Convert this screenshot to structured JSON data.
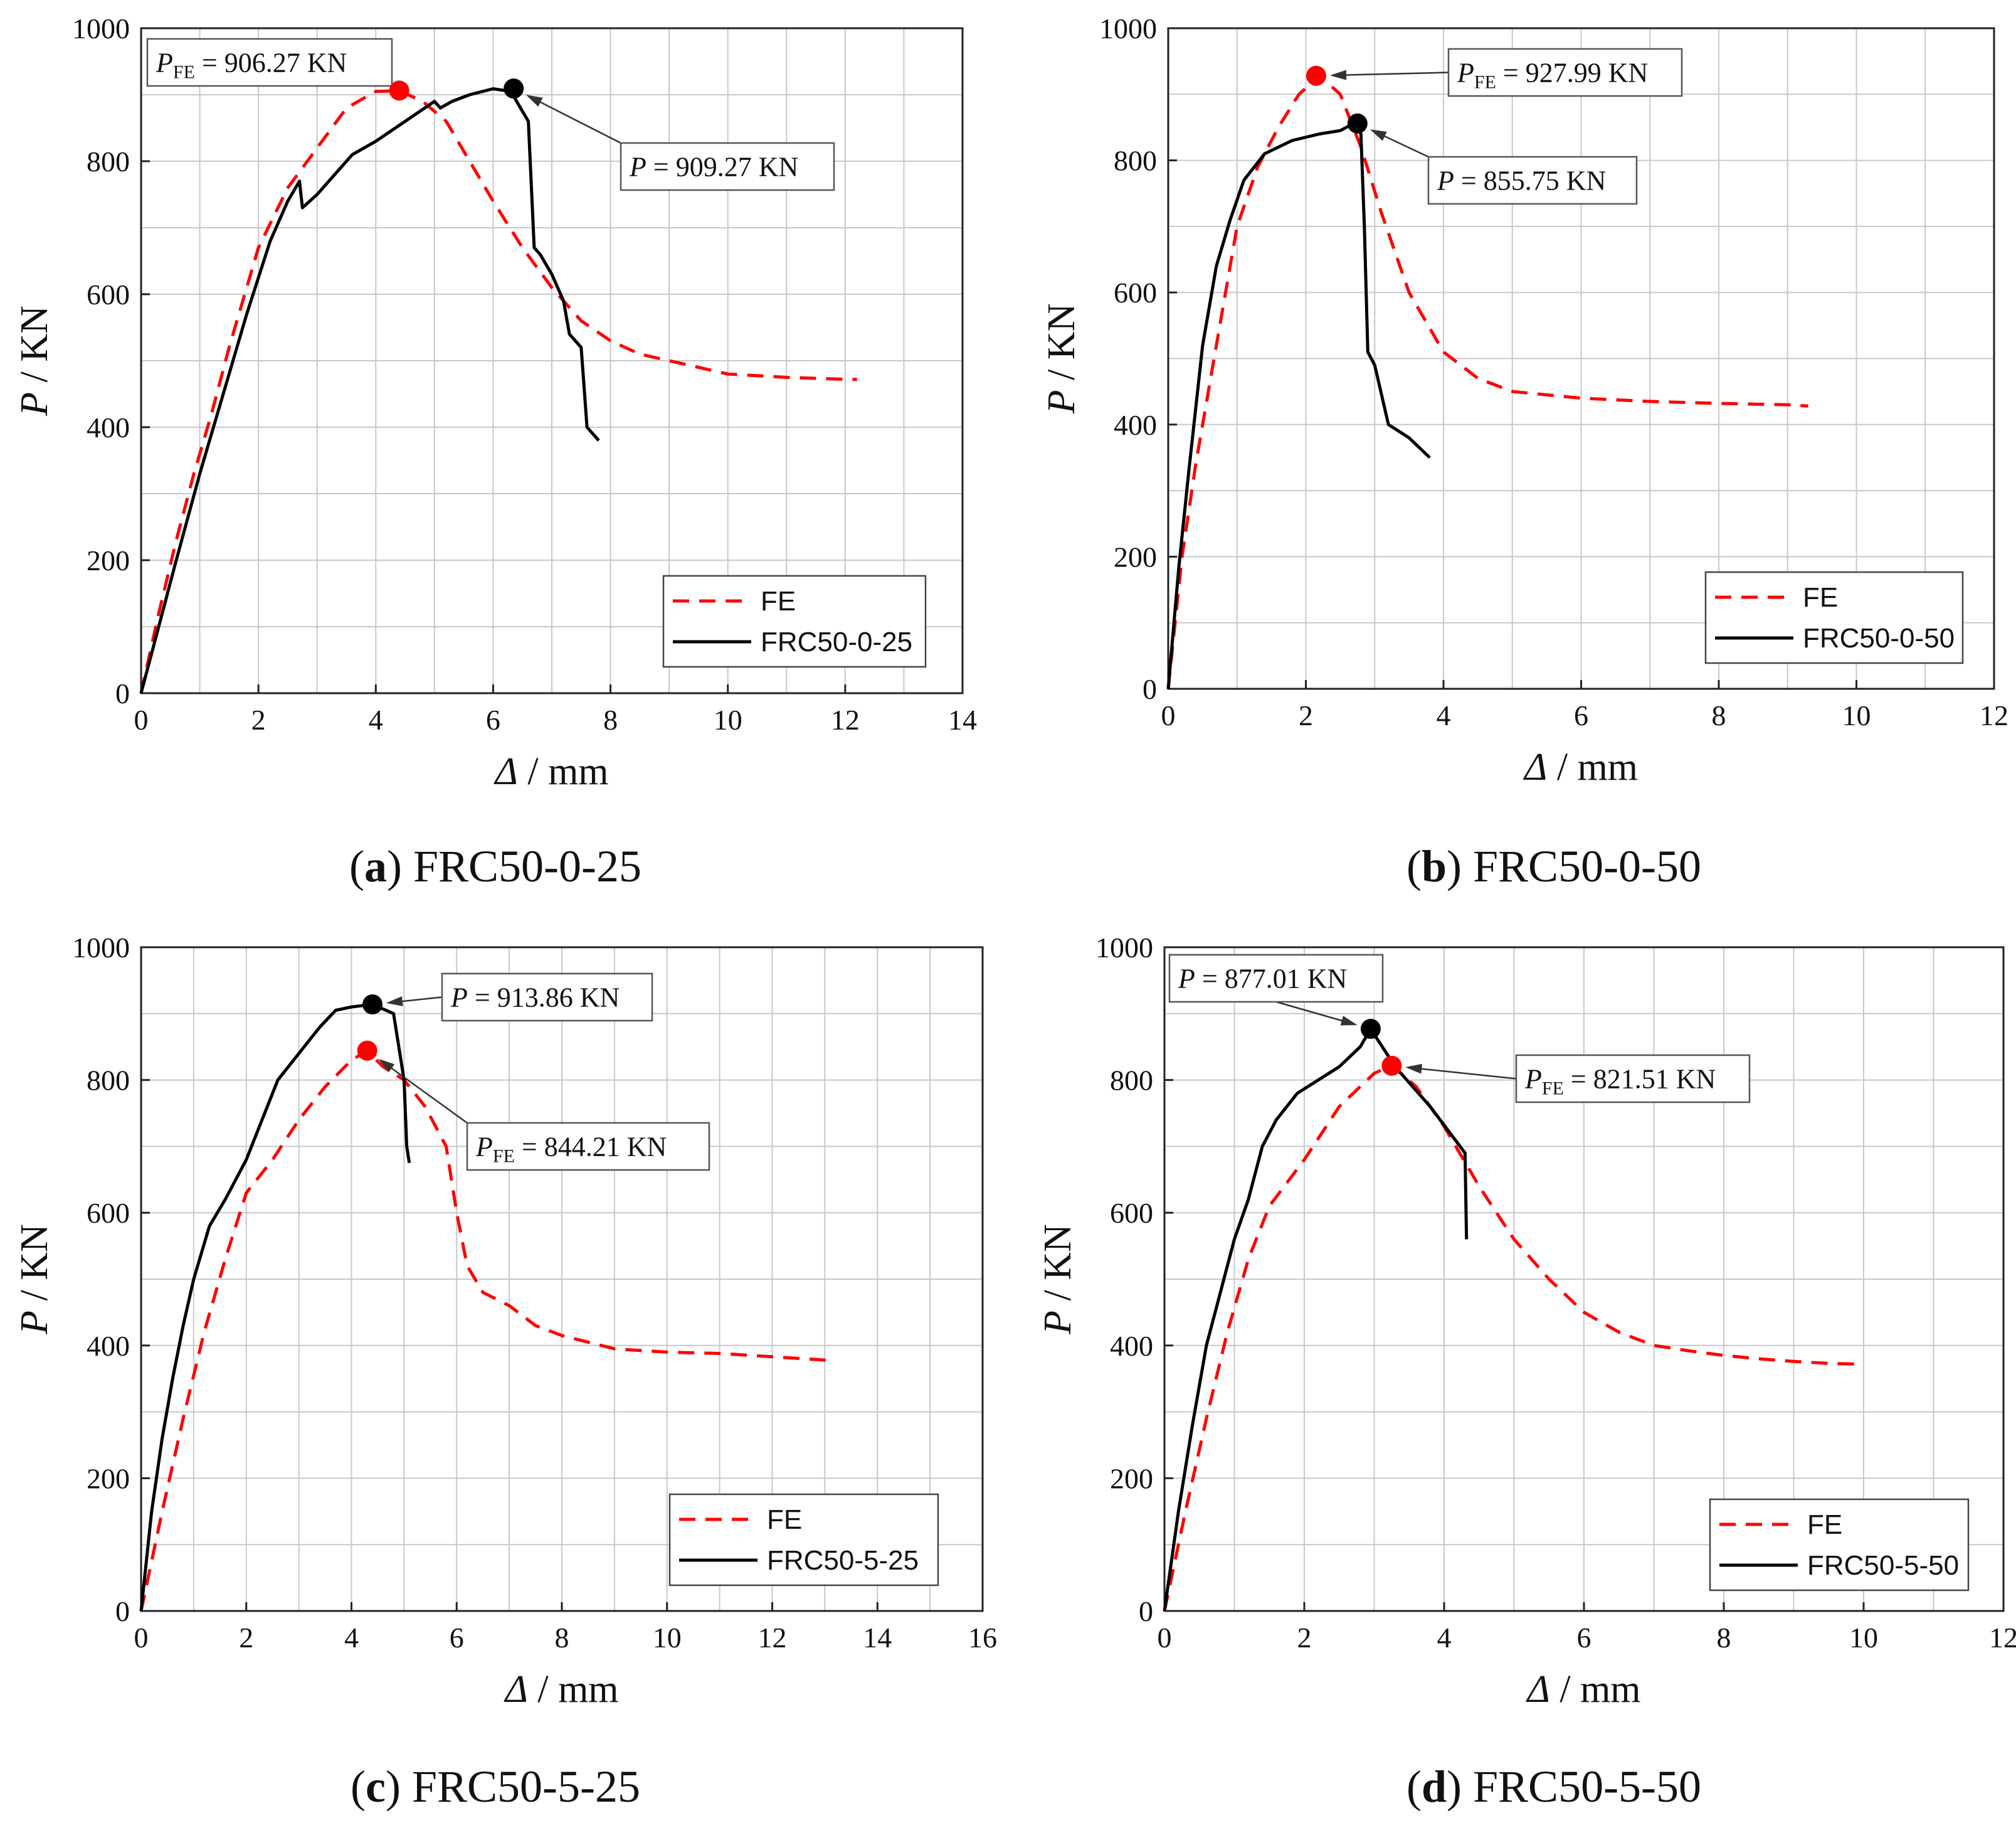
{
  "chart_data": [
    {
      "type": "line",
      "caption_letter": "a",
      "caption_text": "FRC50-0-25",
      "xlabel_symbol": "Δ",
      "xlabel_unit": "/ mm",
      "ylabel_symbol": "P",
      "ylabel_unit": "/ KN",
      "xlim": [
        0,
        14
      ],
      "ylim": [
        0,
        1000
      ],
      "xticks": [
        "0",
        "2",
        "4",
        "6",
        "8",
        "10",
        "12",
        "14"
      ],
      "yticks": [
        "0",
        "200",
        "400",
        "600",
        "800",
        "1000"
      ],
      "legend_position": "bottom-right",
      "series": [
        {
          "name": "FE",
          "style": "dashed",
          "color": "#ff0000",
          "x": [
            0,
            0.3,
            0.6,
            0.9,
            1.2,
            1.5,
            2.0,
            2.5,
            3.0,
            3.5,
            4.0,
            4.4,
            4.8,
            5.2,
            5.6,
            6.0,
            6.5,
            7.0,
            7.5,
            8.0,
            8.5,
            9.0,
            10.0,
            11.0,
            12.0,
            12.2
          ],
          "y": [
            0,
            120,
            230,
            330,
            420,
            520,
            670,
            760,
            820,
            880,
            905,
            906,
            890,
            860,
            800,
            740,
            670,
            610,
            560,
            530,
            510,
            500,
            480,
            475,
            472,
            472
          ]
        },
        {
          "name": "FRC50-0-25",
          "style": "solid",
          "color": "#000000",
          "x": [
            0,
            0.3,
            0.6,
            1.0,
            1.4,
            1.8,
            2.2,
            2.5,
            2.7,
            2.75,
            3.0,
            3.3,
            3.6,
            4.0,
            4.5,
            5.0,
            5.1,
            5.3,
            5.6,
            6.0,
            6.3,
            6.6,
            6.7,
            6.8,
            7.0,
            7.2,
            7.3,
            7.5,
            7.55,
            7.6,
            7.8
          ],
          "y": [
            0,
            100,
            200,
            330,
            450,
            570,
            680,
            740,
            770,
            730,
            750,
            780,
            810,
            830,
            860,
            890,
            880,
            890,
            900,
            909,
            905,
            860,
            670,
            660,
            630,
            590,
            540,
            520,
            460,
            400,
            380
          ]
        }
      ],
      "markers": [
        {
          "series": "FE",
          "x": 4.4,
          "y": 906.27,
          "color": "#ff0000"
        },
        {
          "series": "FRC50-0-25",
          "x": 6.35,
          "y": 909.27,
          "color": "#000000"
        }
      ],
      "annotations": [
        {
          "symbol": "P",
          "subscript": "FE",
          "text": " = 906.27 KN",
          "point_x": 4.4,
          "point_y": 906.27
        },
        {
          "symbol": "P",
          "subscript": "",
          "text": " = 909.27 KN",
          "point_x": 6.35,
          "point_y": 909.27
        }
      ]
    },
    {
      "type": "line",
      "caption_letter": "b",
      "caption_text": "FRC50-0-50",
      "xlabel_symbol": "Δ",
      "xlabel_unit": "/ mm",
      "ylabel_symbol": "P",
      "ylabel_unit": "/ KN",
      "xlim": [
        0,
        12
      ],
      "ylim": [
        0,
        1000
      ],
      "xticks": [
        "0",
        "2",
        "4",
        "6",
        "8",
        "10",
        "12"
      ],
      "yticks": [
        "0",
        "200",
        "400",
        "600",
        "800",
        "1000"
      ],
      "legend_position": "bottom-right",
      "series": [
        {
          "name": "FE",
          "style": "dashed",
          "color": "#ff0000",
          "x": [
            0,
            0.2,
            0.4,
            0.6,
            0.8,
            1.0,
            1.3,
            1.6,
            1.9,
            2.2,
            2.5,
            2.8,
            3.1,
            3.5,
            4.0,
            4.5,
            5.0,
            6.0,
            7.0,
            8.0,
            9.0,
            9.3
          ],
          "y": [
            0,
            200,
            340,
            460,
            580,
            700,
            790,
            850,
            900,
            928,
            900,
            820,
            720,
            600,
            510,
            470,
            450,
            440,
            435,
            432,
            430,
            428
          ]
        },
        {
          "name": "FRC50-0-50",
          "style": "solid",
          "color": "#000000",
          "x": [
            0,
            0.15,
            0.3,
            0.5,
            0.7,
            0.9,
            1.1,
            1.4,
            1.8,
            2.2,
            2.5,
            2.7,
            2.8,
            2.85,
            2.9,
            3.0,
            3.2,
            3.5,
            3.8
          ],
          "y": [
            0,
            180,
            330,
            520,
            640,
            710,
            770,
            810,
            830,
            840,
            845,
            856,
            840,
            700,
            510,
            490,
            400,
            380,
            350
          ]
        }
      ],
      "markers": [
        {
          "series": "FE",
          "x": 2.15,
          "y": 927.99,
          "color": "#ff0000"
        },
        {
          "series": "FRC50-0-50",
          "x": 2.75,
          "y": 855.75,
          "color": "#000000"
        }
      ],
      "annotations": [
        {
          "symbol": "P",
          "subscript": "FE",
          "text": " = 927.99 KN",
          "point_x": 2.15,
          "point_y": 927.99
        },
        {
          "symbol": "P",
          "subscript": "",
          "text": " = 855.75 KN",
          "point_x": 2.75,
          "point_y": 855.75
        }
      ]
    },
    {
      "type": "line",
      "caption_letter": "c",
      "caption_text": "FRC50-5-25",
      "xlabel_symbol": "Δ",
      "xlabel_unit": "/ mm",
      "ylabel_symbol": "P",
      "ylabel_unit": "/ KN",
      "xlim": [
        0,
        16
      ],
      "ylim": [
        0,
        1000
      ],
      "xticks": [
        "0",
        "2",
        "4",
        "6",
        "8",
        "10",
        "12",
        "14",
        "16"
      ],
      "yticks": [
        "0",
        "200",
        "400",
        "600",
        "800",
        "1000"
      ],
      "legend_position": "bottom-right",
      "series": [
        {
          "name": "FE",
          "style": "dashed",
          "color": "#ff0000",
          "x": [
            0,
            0.4,
            0.8,
            1.2,
            1.6,
            2.0,
            2.5,
            3.0,
            3.5,
            4.0,
            4.3,
            4.6,
            5.0,
            5.4,
            5.8,
            6.0,
            6.2,
            6.5,
            7.0,
            7.5,
            8.0,
            9.0,
            10.0,
            11.0,
            12.0,
            13.0,
            13.2
          ],
          "y": [
            0,
            150,
            290,
            420,
            530,
            630,
            680,
            740,
            790,
            830,
            844,
            820,
            800,
            760,
            700,
            600,
            520,
            480,
            460,
            430,
            415,
            395,
            390,
            388,
            383,
            378,
            378
          ]
        },
        {
          "name": "FRC50-5-25",
          "style": "solid",
          "color": "#000000",
          "x": [
            0,
            0.2,
            0.4,
            0.6,
            0.8,
            1.0,
            1.3,
            1.6,
            2.0,
            2.3,
            2.6,
            3.0,
            3.4,
            3.7,
            4.0,
            4.4,
            4.8,
            5.0,
            5.05,
            5.1
          ],
          "y": [
            0,
            150,
            260,
            350,
            430,
            500,
            580,
            620,
            680,
            740,
            800,
            840,
            880,
            905,
            910,
            914,
            900,
            800,
            700,
            675
          ]
        }
      ],
      "markers": [
        {
          "series": "FRC50-5-25",
          "x": 4.4,
          "y": 913.86,
          "color": "#000000"
        },
        {
          "series": "FE",
          "x": 4.3,
          "y": 844.21,
          "color": "#ff0000"
        }
      ],
      "annotations": [
        {
          "symbol": "P",
          "subscript": "",
          "text": " = 913.86 KN",
          "point_x": 4.4,
          "point_y": 913.86
        },
        {
          "symbol": "P",
          "subscript": "FE",
          "text": " = 844.21 KN",
          "point_x": 4.3,
          "point_y": 844.21
        }
      ]
    },
    {
      "type": "line",
      "caption_letter": "d",
      "caption_text": "FRC50-5-50",
      "xlabel_symbol": "Δ",
      "xlabel_unit": "/ mm",
      "ylabel_symbol": "P",
      "ylabel_unit": "/ KN",
      "xlim": [
        0,
        12
      ],
      "ylim": [
        0,
        1000
      ],
      "xticks": [
        "0",
        "2",
        "4",
        "6",
        "8",
        "10",
        "12"
      ],
      "yticks": [
        "0",
        "200",
        "400",
        "600",
        "800",
        "1000"
      ],
      "legend_position": "bottom-right",
      "series": [
        {
          "name": "FE",
          "style": "dashed",
          "color": "#ff0000",
          "x": [
            0,
            0.3,
            0.6,
            0.9,
            1.2,
            1.5,
            2.0,
            2.5,
            3.0,
            3.25,
            3.6,
            4.0,
            4.5,
            5.0,
            5.5,
            6.0,
            6.5,
            7.0,
            7.5,
            8.0,
            8.5,
            9.0,
            9.5,
            9.9
          ],
          "y": [
            0,
            150,
            290,
            420,
            530,
            610,
            680,
            760,
            810,
            822,
            790,
            730,
            640,
            560,
            500,
            450,
            420,
            400,
            392,
            385,
            380,
            376,
            373,
            372
          ]
        },
        {
          "name": "FRC50-5-50",
          "style": "solid",
          "color": "#000000",
          "x": [
            0,
            0.2,
            0.4,
            0.6,
            0.8,
            1.0,
            1.2,
            1.4,
            1.6,
            1.9,
            2.2,
            2.5,
            2.8,
            2.95,
            3.3,
            3.8,
            4.3,
            4.32
          ],
          "y": [
            0,
            150,
            280,
            400,
            480,
            560,
            620,
            700,
            740,
            780,
            800,
            820,
            850,
            877,
            820,
            760,
            690,
            560
          ]
        }
      ],
      "markers": [
        {
          "series": "FRC50-5-50",
          "x": 2.95,
          "y": 877.01,
          "color": "#000000"
        },
        {
          "series": "FE",
          "x": 3.25,
          "y": 821.51,
          "color": "#ff0000"
        }
      ],
      "annotations": [
        {
          "symbol": "P",
          "subscript": "",
          "text": " = 877.01 KN",
          "point_x": 2.95,
          "point_y": 877.01
        },
        {
          "symbol": "P",
          "subscript": "FE",
          "text": " = 821.51 KN",
          "point_x": 3.25,
          "point_y": 821.51
        }
      ]
    }
  ]
}
